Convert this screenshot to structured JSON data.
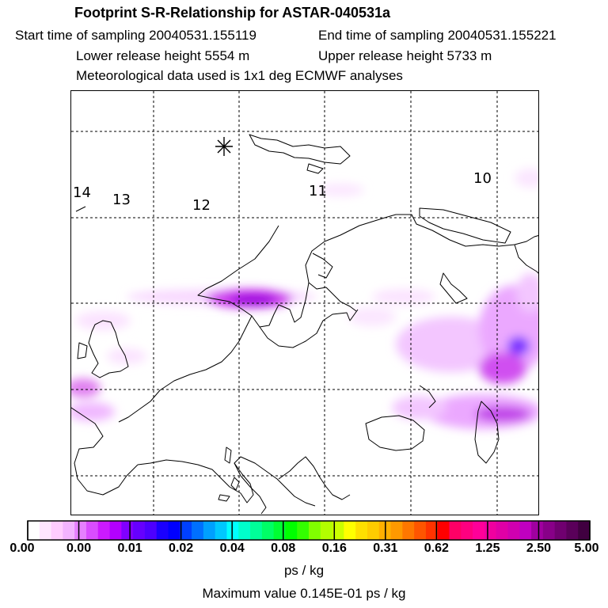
{
  "header": {
    "title": "Footprint S-R-Relationship for ASTAR-040531a",
    "start_time": "Start time of sampling 20040531.155119",
    "end_time": "End time of sampling 20040531.155221",
    "lower_height": "Lower release height 5554 m",
    "upper_height": "Upper release height 5733 m",
    "met_data": "Meteorological data used is 1x1 deg ECMWF analyses"
  },
  "map": {
    "time_labels": [
      "14",
      "13",
      "12",
      "11",
      "10"
    ],
    "marker": "release-site-star-icon"
  },
  "colorbar": {
    "tick_labels": [
      "0.00",
      "0.00",
      "0.01",
      "0.02",
      "0.04",
      "0.08",
      "0.16",
      "0.31",
      "0.62",
      "1.25",
      "2.50",
      "5.00"
    ],
    "colors": [
      "#ffffff",
      "#ffe6ff",
      "#ffccff",
      "#f2b3ff",
      "#e680ff",
      "#d94dff",
      "#cc1aff",
      "#b300ff",
      "#8000ff",
      "#6600ff",
      "#4d00ff",
      "#1a00ff",
      "#0000ff",
      "#0040ff",
      "#0070ff",
      "#00a0ff",
      "#00c8ff",
      "#00ffff",
      "#00ffcc",
      "#00ff99",
      "#00ff66",
      "#00ff33",
      "#00ff00",
      "#33ff00",
      "#80ff00",
      "#b3ff00",
      "#ccff00",
      "#ffff00",
      "#ffe000",
      "#ffcc00",
      "#ffb000",
      "#ff9900",
      "#ff7700",
      "#ff5500",
      "#ff3300",
      "#ff0000",
      "#ff0066",
      "#ff0080",
      "#ff0099",
      "#f0009f",
      "#e000a6",
      "#d000b0",
      "#c000c0",
      "#a000a0",
      "#880088",
      "#700070",
      "#5a005a",
      "#400040"
    ],
    "units": "ps / kg",
    "max_value": "Maximum value  0.145E-01 ps / kg"
  }
}
